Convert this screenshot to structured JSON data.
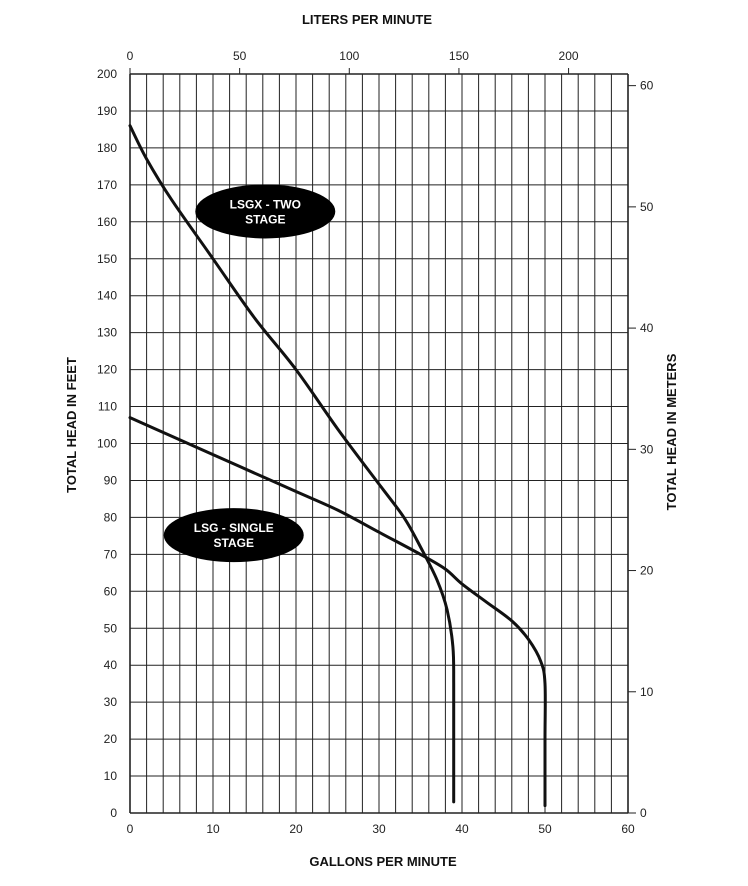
{
  "chart_data": {
    "type": "line",
    "xlabel": "GALLONS PER MINUTE",
    "ylabel": "TOTAL HEAD IN FEET",
    "x2label": "LITERS PER MINUTE",
    "y2label": "TOTAL HEAD IN METERS",
    "xlim": [
      0,
      60
    ],
    "ylim": [
      0,
      200
    ],
    "x2lim": [
      0,
      227.1
    ],
    "y2lim": [
      0,
      60.96
    ],
    "x_ticks": [
      0,
      10,
      20,
      30,
      40,
      50,
      60
    ],
    "y_ticks": [
      0,
      10,
      20,
      30,
      40,
      50,
      60,
      70,
      80,
      90,
      100,
      110,
      120,
      130,
      140,
      150,
      160,
      170,
      180,
      190,
      200
    ],
    "x2_ticks": [
      0,
      50,
      100,
      150,
      200
    ],
    "y2_ticks": [
      0,
      10,
      20,
      30,
      40,
      50,
      60
    ],
    "grid": true,
    "series": [
      {
        "name": "LSGX - TWO STAGE",
        "points": [
          [
            0,
            186
          ],
          [
            2,
            177
          ],
          [
            5,
            166
          ],
          [
            10,
            150
          ],
          [
            15,
            134
          ],
          [
            20,
            120
          ],
          [
            25,
            104
          ],
          [
            30,
            89
          ],
          [
            33,
            80
          ],
          [
            35,
            72
          ],
          [
            37,
            63
          ],
          [
            38.2,
            55
          ],
          [
            38.9,
            45
          ],
          [
            39,
            35
          ],
          [
            39,
            20
          ],
          [
            39,
            3
          ]
        ]
      },
      {
        "name": "LSG - SINGLE STAGE",
        "points": [
          [
            0,
            107
          ],
          [
            5,
            102
          ],
          [
            10,
            97
          ],
          [
            15,
            92
          ],
          [
            20,
            87
          ],
          [
            25,
            82
          ],
          [
            30,
            76
          ],
          [
            35,
            70
          ],
          [
            38,
            66
          ],
          [
            40,
            62
          ],
          [
            43,
            57
          ],
          [
            46,
            52
          ],
          [
            48,
            47
          ],
          [
            49.5,
            41
          ],
          [
            50,
            35
          ],
          [
            50,
            20
          ],
          [
            50,
            2
          ]
        ]
      }
    ],
    "annotations": [
      {
        "text_lines": [
          "LSGX - TWO",
          "STAGE"
        ],
        "x": 16.3,
        "y": 162.8
      },
      {
        "text_lines": [
          "LSG - SINGLE",
          "STAGE"
        ],
        "x": 12.5,
        "y": 75.2
      }
    ],
    "colors": {
      "line": "#111111",
      "grid": "#222222",
      "callout": "#000000"
    }
  }
}
